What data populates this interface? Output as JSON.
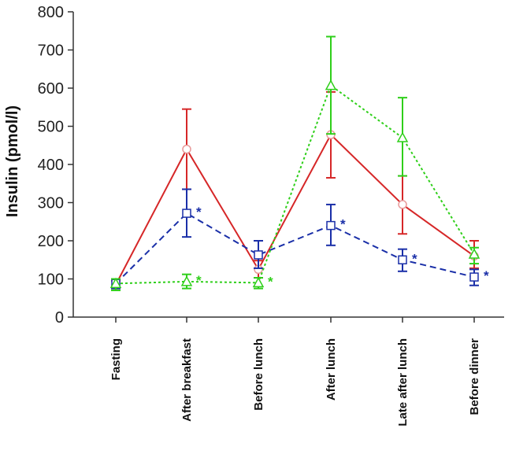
{
  "chart_data": {
    "type": "line",
    "title": "",
    "xlabel": "",
    "ylabel": "Insulin (pmol/l)",
    "ylim": [
      0,
      800
    ],
    "yticks": [
      0,
      100,
      200,
      300,
      400,
      500,
      600,
      700,
      800
    ],
    "categories": [
      "Fasting",
      "After breakfast",
      "Before lunch",
      "After lunch",
      "Late after lunch",
      "Before dinner"
    ],
    "series": [
      {
        "name": "red",
        "color": "#d62728",
        "line_style": "solid",
        "marker": "circle",
        "values": [
          85,
          440,
          125,
          478,
          295,
          160
        ],
        "err_low": [
          75,
          335,
          103,
          365,
          218,
          128
        ],
        "err_high": [
          95,
          545,
          148,
          590,
          370,
          200
        ],
        "significance": [
          "",
          "",
          "",
          "",
          "",
          ""
        ]
      },
      {
        "name": "blue",
        "color": "#1a2fa8",
        "line_style": "dashed",
        "marker": "square",
        "values": [
          88,
          272,
          163,
          240,
          150,
          105
        ],
        "err_low": [
          75,
          210,
          128,
          188,
          120,
          83
        ],
        "err_high": [
          100,
          335,
          200,
          295,
          178,
          125
        ],
        "significance": [
          "",
          "*",
          "",
          "*",
          "*",
          "*"
        ]
      },
      {
        "name": "green",
        "color": "#2fcf1a",
        "line_style": "dotted",
        "marker": "triangle",
        "values": [
          88,
          93,
          90,
          607,
          470,
          165
        ],
        "err_low": [
          70,
          75,
          75,
          480,
          370,
          140
        ],
        "err_high": [
          100,
          112,
          103,
          735,
          575,
          182
        ],
        "significance": [
          "",
          "*",
          "*",
          "",
          "",
          ""
        ]
      }
    ]
  }
}
